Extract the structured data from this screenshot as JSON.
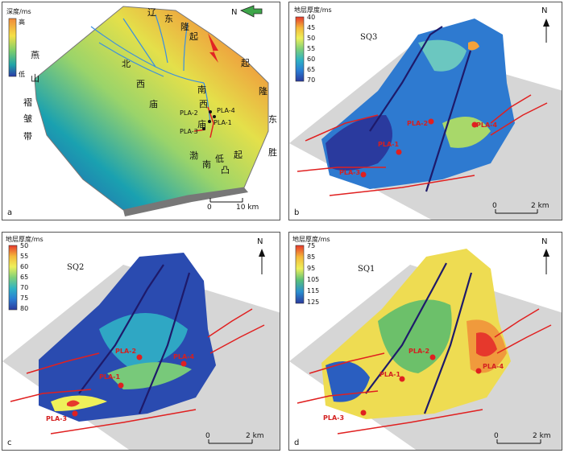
{
  "panel_a": {
    "letter": "a",
    "legend_title": "深度/ms",
    "legend_high": "高",
    "legend_low": "低",
    "north": "N",
    "scale_zero": "0",
    "scale_end": "10 km",
    "wells": [
      "PLA-2",
      "PLA-4",
      "PLA-1",
      "PLA-3"
    ],
    "places": {
      "liao": "辽",
      "dong1": "东",
      "long1": "隆",
      "qi1": "起",
      "yan": "燕",
      "shan": "山",
      "zhe": "褶",
      "zhou": "皱",
      "dai": "带",
      "bei": "北",
      "xi1": "西",
      "miao1": "庙",
      "nan": "南",
      "xi2": "西",
      "miao2": "庙",
      "qi2": "起",
      "long2": "隆",
      "dong2": "东",
      "sheng": "胜",
      "bo": "渤",
      "nan2": "南",
      "di": "低",
      "tu": "凸",
      "qi3": "起"
    }
  },
  "panel_b": {
    "letter": "b",
    "legend_title": "地层厚度/ms",
    "ticks": [
      "40",
      "45",
      "50",
      "55",
      "60",
      "65",
      "70"
    ],
    "seq": "SQ3",
    "north": "N",
    "wells": [
      "PLA-2",
      "PLA-4",
      "PLA-1",
      "PLA-3"
    ],
    "scale_zero": "0",
    "scale_end": "2 km"
  },
  "panel_c": {
    "letter": "c",
    "legend_title": "地层厚度/ms",
    "ticks": [
      "50",
      "55",
      "60",
      "65",
      "70",
      "75",
      "80"
    ],
    "seq": "SQ2",
    "north": "N",
    "wells": [
      "PLA-2",
      "PLA-4",
      "PLA-1",
      "PLA-3"
    ],
    "scale_zero": "0",
    "scale_end": "2 km"
  },
  "panel_d": {
    "letter": "d",
    "legend_title": "地层厚度/ms",
    "ticks": [
      "75",
      "85",
      "95",
      "105",
      "115",
      "125"
    ],
    "seq": "SQ1",
    "north": "N",
    "wells": [
      "PLA-2",
      "PLA-4",
      "PLA-1",
      "PLA-3"
    ],
    "scale_zero": "0",
    "scale_end": "2 km"
  }
}
